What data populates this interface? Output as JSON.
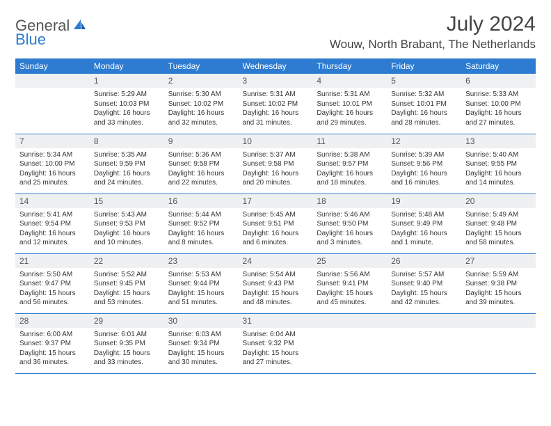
{
  "logo": {
    "text1": "General",
    "text2": "Blue"
  },
  "title": "July 2024",
  "location": "Wouw, North Brabant, The Netherlands",
  "colors": {
    "header_bg": "#2e7cd1",
    "header_fg": "#ffffff",
    "daynum_bg": "#eef0f2",
    "text": "#333333",
    "rule": "#2e7cd1"
  },
  "weekdays": [
    "Sunday",
    "Monday",
    "Tuesday",
    "Wednesday",
    "Thursday",
    "Friday",
    "Saturday"
  ],
  "weeks": [
    [
      {
        "n": "",
        "sr": "",
        "ss": "",
        "dl": ""
      },
      {
        "n": "1",
        "sr": "Sunrise: 5:29 AM",
        "ss": "Sunset: 10:03 PM",
        "dl": "Daylight: 16 hours and 33 minutes."
      },
      {
        "n": "2",
        "sr": "Sunrise: 5:30 AM",
        "ss": "Sunset: 10:02 PM",
        "dl": "Daylight: 16 hours and 32 minutes."
      },
      {
        "n": "3",
        "sr": "Sunrise: 5:31 AM",
        "ss": "Sunset: 10:02 PM",
        "dl": "Daylight: 16 hours and 31 minutes."
      },
      {
        "n": "4",
        "sr": "Sunrise: 5:31 AM",
        "ss": "Sunset: 10:01 PM",
        "dl": "Daylight: 16 hours and 29 minutes."
      },
      {
        "n": "5",
        "sr": "Sunrise: 5:32 AM",
        "ss": "Sunset: 10:01 PM",
        "dl": "Daylight: 16 hours and 28 minutes."
      },
      {
        "n": "6",
        "sr": "Sunrise: 5:33 AM",
        "ss": "Sunset: 10:00 PM",
        "dl": "Daylight: 16 hours and 27 minutes."
      }
    ],
    [
      {
        "n": "7",
        "sr": "Sunrise: 5:34 AM",
        "ss": "Sunset: 10:00 PM",
        "dl": "Daylight: 16 hours and 25 minutes."
      },
      {
        "n": "8",
        "sr": "Sunrise: 5:35 AM",
        "ss": "Sunset: 9:59 PM",
        "dl": "Daylight: 16 hours and 24 minutes."
      },
      {
        "n": "9",
        "sr": "Sunrise: 5:36 AM",
        "ss": "Sunset: 9:58 PM",
        "dl": "Daylight: 16 hours and 22 minutes."
      },
      {
        "n": "10",
        "sr": "Sunrise: 5:37 AM",
        "ss": "Sunset: 9:58 PM",
        "dl": "Daylight: 16 hours and 20 minutes."
      },
      {
        "n": "11",
        "sr": "Sunrise: 5:38 AM",
        "ss": "Sunset: 9:57 PM",
        "dl": "Daylight: 16 hours and 18 minutes."
      },
      {
        "n": "12",
        "sr": "Sunrise: 5:39 AM",
        "ss": "Sunset: 9:56 PM",
        "dl": "Daylight: 16 hours and 16 minutes."
      },
      {
        "n": "13",
        "sr": "Sunrise: 5:40 AM",
        "ss": "Sunset: 9:55 PM",
        "dl": "Daylight: 16 hours and 14 minutes."
      }
    ],
    [
      {
        "n": "14",
        "sr": "Sunrise: 5:41 AM",
        "ss": "Sunset: 9:54 PM",
        "dl": "Daylight: 16 hours and 12 minutes."
      },
      {
        "n": "15",
        "sr": "Sunrise: 5:43 AM",
        "ss": "Sunset: 9:53 PM",
        "dl": "Daylight: 16 hours and 10 minutes."
      },
      {
        "n": "16",
        "sr": "Sunrise: 5:44 AM",
        "ss": "Sunset: 9:52 PM",
        "dl": "Daylight: 16 hours and 8 minutes."
      },
      {
        "n": "17",
        "sr": "Sunrise: 5:45 AM",
        "ss": "Sunset: 9:51 PM",
        "dl": "Daylight: 16 hours and 6 minutes."
      },
      {
        "n": "18",
        "sr": "Sunrise: 5:46 AM",
        "ss": "Sunset: 9:50 PM",
        "dl": "Daylight: 16 hours and 3 minutes."
      },
      {
        "n": "19",
        "sr": "Sunrise: 5:48 AM",
        "ss": "Sunset: 9:49 PM",
        "dl": "Daylight: 16 hours and 1 minute."
      },
      {
        "n": "20",
        "sr": "Sunrise: 5:49 AM",
        "ss": "Sunset: 9:48 PM",
        "dl": "Daylight: 15 hours and 58 minutes."
      }
    ],
    [
      {
        "n": "21",
        "sr": "Sunrise: 5:50 AM",
        "ss": "Sunset: 9:47 PM",
        "dl": "Daylight: 15 hours and 56 minutes."
      },
      {
        "n": "22",
        "sr": "Sunrise: 5:52 AM",
        "ss": "Sunset: 9:45 PM",
        "dl": "Daylight: 15 hours and 53 minutes."
      },
      {
        "n": "23",
        "sr": "Sunrise: 5:53 AM",
        "ss": "Sunset: 9:44 PM",
        "dl": "Daylight: 15 hours and 51 minutes."
      },
      {
        "n": "24",
        "sr": "Sunrise: 5:54 AM",
        "ss": "Sunset: 9:43 PM",
        "dl": "Daylight: 15 hours and 48 minutes."
      },
      {
        "n": "25",
        "sr": "Sunrise: 5:56 AM",
        "ss": "Sunset: 9:41 PM",
        "dl": "Daylight: 15 hours and 45 minutes."
      },
      {
        "n": "26",
        "sr": "Sunrise: 5:57 AM",
        "ss": "Sunset: 9:40 PM",
        "dl": "Daylight: 15 hours and 42 minutes."
      },
      {
        "n": "27",
        "sr": "Sunrise: 5:59 AM",
        "ss": "Sunset: 9:38 PM",
        "dl": "Daylight: 15 hours and 39 minutes."
      }
    ],
    [
      {
        "n": "28",
        "sr": "Sunrise: 6:00 AM",
        "ss": "Sunset: 9:37 PM",
        "dl": "Daylight: 15 hours and 36 minutes."
      },
      {
        "n": "29",
        "sr": "Sunrise: 6:01 AM",
        "ss": "Sunset: 9:35 PM",
        "dl": "Daylight: 15 hours and 33 minutes."
      },
      {
        "n": "30",
        "sr": "Sunrise: 6:03 AM",
        "ss": "Sunset: 9:34 PM",
        "dl": "Daylight: 15 hours and 30 minutes."
      },
      {
        "n": "31",
        "sr": "Sunrise: 6:04 AM",
        "ss": "Sunset: 9:32 PM",
        "dl": "Daylight: 15 hours and 27 minutes."
      },
      {
        "n": "",
        "sr": "",
        "ss": "",
        "dl": ""
      },
      {
        "n": "",
        "sr": "",
        "ss": "",
        "dl": ""
      },
      {
        "n": "",
        "sr": "",
        "ss": "",
        "dl": ""
      }
    ]
  ]
}
